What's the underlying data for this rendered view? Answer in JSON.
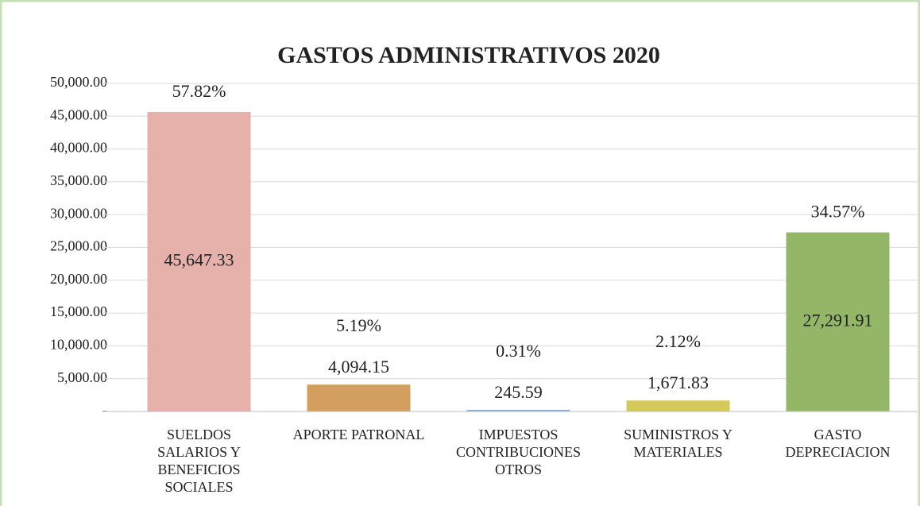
{
  "chart_data": {
    "type": "bar",
    "title": "GASTOS ADMINISTRATIVOS 2020",
    "categories": [
      "SUELDOS SALARIOS Y BENEFICIOS SOCIALES",
      "APORTE PATRONAL",
      "IMPUESTOS CONTRIBUCIONES OTROS",
      "SUMINISTROS Y MATERIALES",
      "GASTO DEPRECIACION"
    ],
    "values": [
      45647.33,
      4094.15,
      245.59,
      1671.83,
      27291.91
    ],
    "value_labels": [
      "45,647.33",
      "4,094.15",
      "245.59",
      "1,671.83",
      "27,291.91"
    ],
    "shares": [
      57.82,
      5.19,
      0.31,
      2.12,
      34.57
    ],
    "share_labels": [
      "57.82%",
      "5.19%",
      "0.31%",
      "2.12%",
      "34.57%"
    ],
    "colors": [
      "#e6b0ab",
      "#d39f5e",
      "#8eaad8",
      "#d6c95c",
      "#93b767"
    ],
    "ylim": [
      0,
      50000
    ],
    "yticks": [
      {
        "value": 0,
        "label": "-"
      },
      {
        "value": 5000,
        "label": "5,000.00"
      },
      {
        "value": 10000,
        "label": "10,000.00"
      },
      {
        "value": 15000,
        "label": "15,000.00"
      },
      {
        "value": 20000,
        "label": "20,000.00"
      },
      {
        "value": 25000,
        "label": "25,000.00"
      },
      {
        "value": 30000,
        "label": "30,000.00"
      },
      {
        "value": 35000,
        "label": "35,000.00"
      },
      {
        "value": 40000,
        "label": "40,000.00"
      },
      {
        "value": 45000,
        "label": "45,000.00"
      },
      {
        "value": 50000,
        "label": "50,000.00"
      }
    ],
    "grid": true
  }
}
